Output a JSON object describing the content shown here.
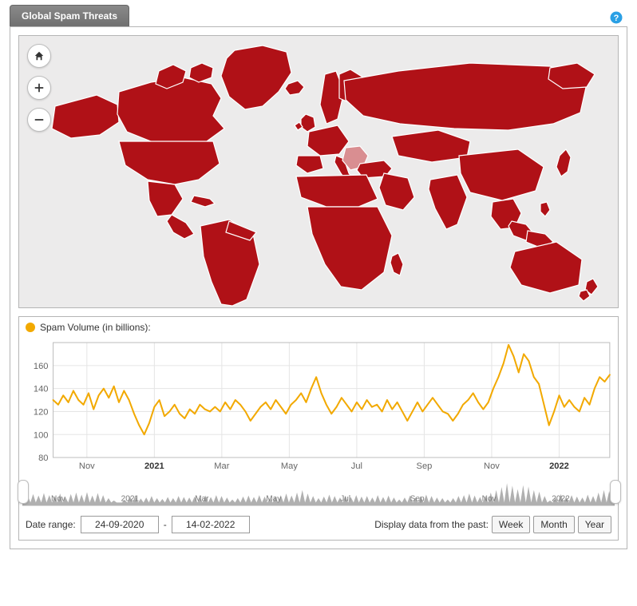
{
  "colors": {
    "page_bg": "#ffffff",
    "panel_border": "#b5b5b5",
    "map_bg": "#ecebeb",
    "map_fill": "#b01117",
    "map_stroke": "#ffffff",
    "map_light": "#d98e91",
    "tab_bg_top": "#8a8a8a",
    "tab_bg_bottom": "#707070",
    "tab_text": "#ffffff",
    "help_blue": "#2aa0e5",
    "series_orange": "#f2a900",
    "grid": "#e5e5e5",
    "axis": "#bdbdbd",
    "tick_text": "#666666",
    "tick_strong": "#333333",
    "scrubber_fill": "#b0b0b0",
    "scrubber_label": "#7a7a7a",
    "button_bg": "#f6f6f6",
    "button_border": "#9a9a9a"
  },
  "header": {
    "tab_title": "Global Spam Threats",
    "help_title": "Help"
  },
  "map": {
    "type": "choropleth",
    "background_color": "#ecebeb",
    "country_fill": "#b01117",
    "country_stroke": "#ffffff",
    "light_fill": "#d98e91",
    "controls": {
      "home": "Home",
      "zoom_in": "Zoom in",
      "zoom_out": "Zoom out"
    }
  },
  "chart": {
    "type": "line",
    "legend_label": "Spam Volume (in billions):",
    "series_color": "#f2a900",
    "line_width": 2,
    "ylim": [
      80,
      180
    ],
    "yticks": [
      80,
      100,
      120,
      140,
      160
    ],
    "xticks": [
      {
        "t": 1,
        "label": "Nov",
        "strong": false
      },
      {
        "t": 3,
        "label": "2021",
        "strong": true
      },
      {
        "t": 5,
        "label": "Mar",
        "strong": false
      },
      {
        "t": 7,
        "label": "May",
        "strong": false
      },
      {
        "t": 9,
        "label": "Jul",
        "strong": false
      },
      {
        "t": 11,
        "label": "Sep",
        "strong": false
      },
      {
        "t": 13,
        "label": "Nov",
        "strong": false
      },
      {
        "t": 15,
        "label": "2022",
        "strong": true
      }
    ],
    "x_domain": [
      0,
      16.5
    ],
    "grid_color": "#e5e5e5",
    "axis_color": "#bdbdbd",
    "background_color": "#ffffff",
    "data": [
      130,
      126,
      134,
      128,
      138,
      130,
      126,
      136,
      122,
      134,
      140,
      132,
      142,
      128,
      138,
      130,
      118,
      108,
      100,
      110,
      124,
      130,
      116,
      120,
      126,
      118,
      114,
      122,
      118,
      126,
      122,
      120,
      124,
      120,
      128,
      122,
      130,
      126,
      120,
      112,
      118,
      124,
      128,
      122,
      130,
      124,
      118,
      126,
      130,
      136,
      128,
      140,
      150,
      136,
      126,
      118,
      124,
      132,
      126,
      120,
      128,
      122,
      130,
      124,
      126,
      120,
      130,
      122,
      128,
      120,
      112,
      120,
      128,
      120,
      126,
      132,
      126,
      120,
      118,
      112,
      118,
      126,
      130,
      136,
      128,
      122,
      128,
      140,
      150,
      162,
      178,
      168,
      154,
      170,
      164,
      150,
      144,
      126,
      108,
      120,
      134,
      124,
      130,
      124,
      120,
      132,
      126,
      140,
      150,
      146,
      152
    ]
  },
  "scrubber": {
    "labels": [
      {
        "t": 1,
        "label": "Nov"
      },
      {
        "t": 3,
        "label": "2021"
      },
      {
        "t": 5,
        "label": "Mar"
      },
      {
        "t": 7,
        "label": "May"
      },
      {
        "t": 9,
        "label": "Jul"
      },
      {
        "t": 11,
        "label": "Sep"
      },
      {
        "t": 13,
        "label": "Nov"
      },
      {
        "t": 15,
        "label": "2022"
      }
    ],
    "x_domain": [
      0,
      16.5
    ],
    "fill_color": "#b0b0b0",
    "label_color": "#7a7a7a",
    "handle_left_pct": 0,
    "handle_right_pct": 100
  },
  "footer": {
    "range_label": "Date range:",
    "from": "24-09-2020",
    "sep": "-",
    "to": "14-02-2022",
    "preset_label": "Display data from the past:",
    "presets": [
      "Week",
      "Month",
      "Year"
    ]
  }
}
